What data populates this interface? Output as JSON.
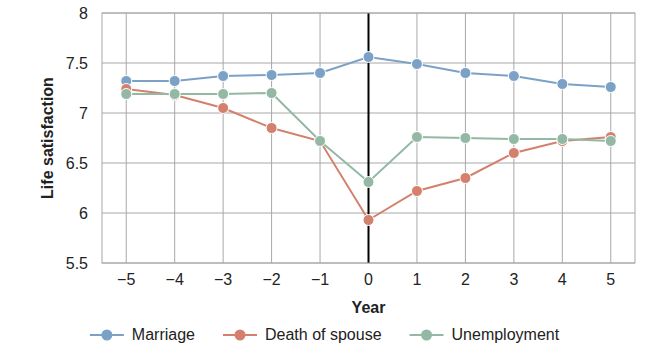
{
  "chart_data": {
    "type": "line",
    "x_label": "Year",
    "y_label": "Life satisfaction",
    "x": [
      -5,
      -4,
      -3,
      -2,
      -1,
      0,
      1,
      2,
      3,
      4,
      5
    ],
    "xlim": [
      -5.5,
      5.5
    ],
    "xticks": [
      {
        "value": -5,
        "label": "−5"
      },
      {
        "value": -4,
        "label": "−4"
      },
      {
        "value": -3,
        "label": "−3"
      },
      {
        "value": -2,
        "label": "−2"
      },
      {
        "value": -1,
        "label": "−1"
      },
      0,
      1,
      2,
      3,
      4,
      5
    ],
    "ylim": [
      5.5,
      8
    ],
    "yticks": [
      5.5,
      6,
      6.5,
      7,
      7.5,
      8
    ],
    "grid": true,
    "legend": "bottom",
    "series": [
      {
        "name": "Marriage",
        "color": "#7ba1c7",
        "marker": "circle",
        "values": [
          7.32,
          7.32,
          7.37,
          7.38,
          7.4,
          7.56,
          7.49,
          7.4,
          7.37,
          7.29,
          7.26
        ]
      },
      {
        "name": "Death of spouse",
        "color": "#d3806c",
        "marker": "circle",
        "values": [
          7.24,
          7.18,
          7.05,
          6.85,
          6.72,
          5.93,
          6.22,
          6.35,
          6.6,
          6.72,
          6.76
        ]
      },
      {
        "name": "Unemployment",
        "color": "#93b8a3",
        "marker": "circle",
        "values": [
          7.19,
          7.19,
          7.19,
          7.2,
          6.72,
          6.31,
          6.76,
          6.75,
          6.74,
          6.74,
          6.72
        ]
      }
    ]
  }
}
